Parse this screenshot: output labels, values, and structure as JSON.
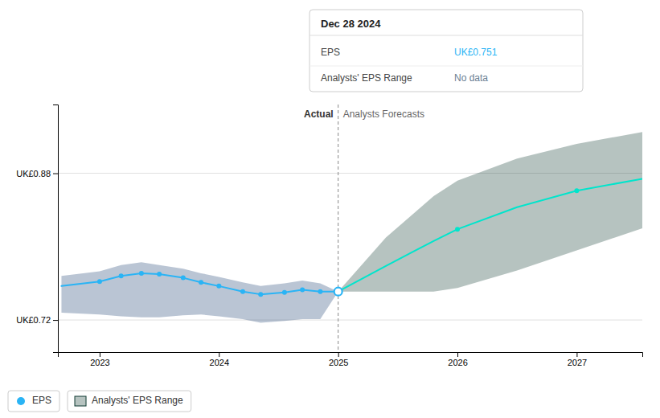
{
  "chart_data": {
    "type": "line",
    "xlim": [
      2022.65,
      2027.55
    ],
    "ylim": [
      0.685,
      0.955
    ],
    "xticks": [
      2023,
      2024,
      2025,
      2026,
      2027
    ],
    "yticks": [
      {
        "value": 0.88,
        "label": "UK£0.88"
      },
      {
        "value": 0.72,
        "label": "UK£0.72"
      }
    ],
    "grid": true,
    "legend": "bottom-left",
    "series": [
      {
        "name": "EPS",
        "type": "line",
        "color": "#2ab4f5",
        "x": [
          2022.68,
          2023.0,
          2023.18,
          2023.35,
          2023.5,
          2023.7,
          2023.85,
          2024.0,
          2024.2,
          2024.35,
          2024.55,
          2024.7,
          2024.85,
          2025.0
        ],
        "values": [
          0.757,
          0.762,
          0.768,
          0.771,
          0.77,
          0.766,
          0.761,
          0.757,
          0.751,
          0.748,
          0.75,
          0.753,
          0.751,
          0.751
        ]
      },
      {
        "type": "line",
        "color": "#00e5cc",
        "x": [
          2025.0,
          2025.4,
          2025.8,
          2026.0,
          2026.5,
          2027.0,
          2027.55
        ],
        "values": [
          0.751,
          0.779,
          0.806,
          0.819,
          0.843,
          0.861,
          0.874
        ]
      },
      {
        "type": "area",
        "color": "#1a4070",
        "x": [
          2022.68,
          2023.0,
          2023.18,
          2023.35,
          2023.5,
          2023.7,
          2023.85,
          2024.0,
          2024.2,
          2024.35,
          2024.55,
          2024.7,
          2024.85,
          2025.0
        ],
        "lower": [
          0.728,
          0.726,
          0.724,
          0.723,
          0.723,
          0.725,
          0.726,
          0.724,
          0.721,
          0.717,
          0.719,
          0.721,
          0.721,
          0.751
        ],
        "upper": [
          0.768,
          0.773,
          0.78,
          0.783,
          0.78,
          0.776,
          0.771,
          0.767,
          0.761,
          0.757,
          0.76,
          0.763,
          0.76,
          0.751
        ]
      },
      {
        "name": "Analysts' EPS Range",
        "type": "area",
        "color": "#0d3830",
        "x": [
          2025.0,
          2025.4,
          2025.8,
          2026.0,
          2026.5,
          2027.0,
          2027.55
        ],
        "lower": [
          0.751,
          0.751,
          0.751,
          0.755,
          0.774,
          0.796,
          0.82
        ],
        "upper": [
          0.751,
          0.81,
          0.855,
          0.872,
          0.896,
          0.912,
          0.925
        ]
      },
      {
        "type": "scatter",
        "marker": "circle",
        "color": "#2ab4f5",
        "x": [
          2023.0,
          2023.18,
          2023.35,
          2023.5,
          2023.7,
          2023.85,
          2024.0,
          2024.2,
          2024.35,
          2024.55,
          2024.7,
          2024.85
        ],
        "values": [
          0.762,
          0.768,
          0.771,
          0.77,
          0.766,
          0.761,
          0.757,
          0.751,
          0.748,
          0.75,
          0.753,
          0.751
        ]
      },
      {
        "type": "scatter",
        "marker": "circle",
        "color": "#00e5cc",
        "x": [
          2026.0,
          2027.0
        ],
        "values": [
          0.819,
          0.861
        ]
      }
    ],
    "highlight": {
      "x": 2025.0,
      "y": 0.751
    },
    "divider_x": 2025.0,
    "annotations": [
      {
        "text": "Actual"
      },
      {
        "text": "Analysts Forecasts"
      }
    ],
    "tooltip": {
      "title": "Dec 28 2024",
      "rows": [
        {
          "label": "EPS",
          "value": "UK£0.751",
          "color": "#2ab4f5"
        },
        {
          "label": "Analysts' EPS Range",
          "value": "No data",
          "color": "#6a7e92"
        }
      ]
    }
  }
}
